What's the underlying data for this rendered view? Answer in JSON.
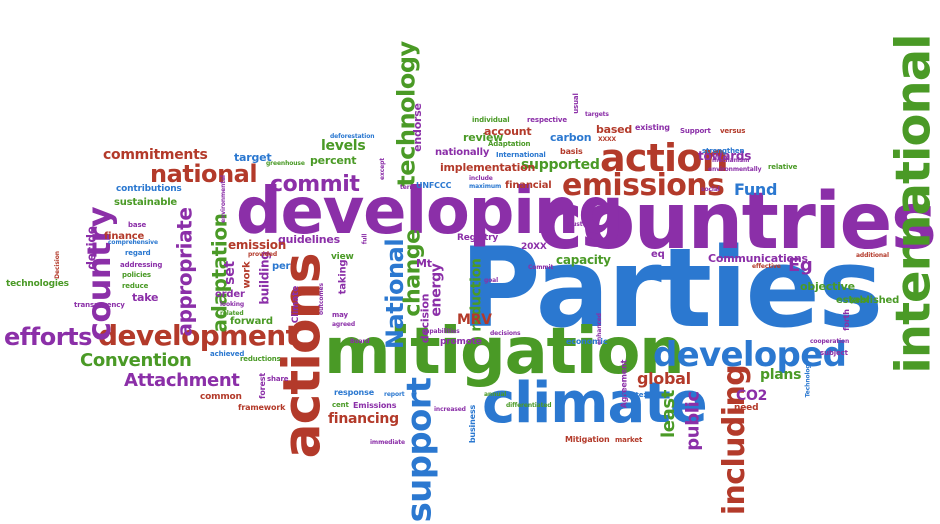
{
  "palette": {
    "green": "#4a9a26",
    "purple": "#8b2fa8",
    "red": "#b33a2a",
    "blue": "#2b78d0"
  },
  "words": [
    {
      "t": "Parties",
      "c": "blue",
      "s": 110
    },
    {
      "t": "countries",
      "c": "purple",
      "s": 78
    },
    {
      "t": "developing",
      "c": "purple",
      "s": 64
    },
    {
      "t": "mitigation",
      "c": "green",
      "s": 64
    },
    {
      "t": "climate",
      "c": "blue",
      "s": 56
    },
    {
      "t": "international",
      "c": "green",
      "s": 48,
      "r": 1
    },
    {
      "t": "actions",
      "c": "red",
      "s": 52,
      "r": 1
    },
    {
      "t": "action",
      "c": "red",
      "s": 38
    },
    {
      "t": "developed",
      "c": "blue",
      "s": 34
    },
    {
      "t": "emissions",
      "c": "red",
      "s": 30
    },
    {
      "t": "development",
      "c": "red",
      "s": 28
    },
    {
      "t": "country",
      "c": "purple",
      "s": 32,
      "r": 1
    },
    {
      "t": "support",
      "c": "blue",
      "s": 34,
      "r": 1
    },
    {
      "t": "including",
      "c": "red",
      "s": 30,
      "r": 1
    },
    {
      "t": "technology",
      "c": "green",
      "s": 24,
      "r": 1
    },
    {
      "t": "National",
      "c": "blue",
      "s": 24,
      "r": 1
    },
    {
      "t": "commit",
      "c": "purple",
      "s": 22
    },
    {
      "t": "national",
      "c": "red",
      "s": 24
    },
    {
      "t": "efforts",
      "c": "purple",
      "s": 24
    },
    {
      "t": "Attachment",
      "c": "purple",
      "s": 18
    },
    {
      "t": "Convention",
      "c": "green",
      "s": 18
    },
    {
      "t": "appropriate",
      "c": "purple",
      "s": 20,
      "r": 1
    },
    {
      "t": "adaptation",
      "c": "green",
      "s": 20,
      "r": 1
    },
    {
      "t": "change",
      "c": "green",
      "s": 22,
      "r": 1
    },
    {
      "t": "commitments",
      "c": "red",
      "s": 14
    },
    {
      "t": "Fund",
      "c": "blue",
      "s": 16
    },
    {
      "t": "Eg",
      "c": "purple",
      "s": 18
    },
    {
      "t": "global",
      "c": "red",
      "s": 16
    },
    {
      "t": "least",
      "c": "green",
      "s": 18,
      "r": 1
    },
    {
      "t": "public",
      "c": "purple",
      "s": 18,
      "r": 1
    },
    {
      "t": "CO2",
      "c": "purple",
      "s": 14
    },
    {
      "t": "plans",
      "c": "green",
      "s": 14
    },
    {
      "t": "financing",
      "c": "red",
      "s": 14
    },
    {
      "t": "supported",
      "c": "green",
      "s": 14
    },
    {
      "t": "implementation",
      "c": "red",
      "s": 11
    },
    {
      "t": "levels",
      "c": "green",
      "s": 14
    },
    {
      "t": "percent",
      "c": "green",
      "s": 11
    },
    {
      "t": "target",
      "c": "blue",
      "s": 11
    },
    {
      "t": "guidelines",
      "c": "purple",
      "s": 11
    },
    {
      "t": "emission",
      "c": "red",
      "s": 12
    },
    {
      "t": "set",
      "c": "purple",
      "s": 14,
      "r": 1
    },
    {
      "t": "reduction",
      "c": "green",
      "s": 14,
      "r": 1
    },
    {
      "t": "energy",
      "c": "purple",
      "s": 14,
      "r": 1
    },
    {
      "t": "decision",
      "c": "purple",
      "s": 11,
      "r": 1
    },
    {
      "t": "MRV",
      "c": "red",
      "s": 14
    },
    {
      "t": "capacity",
      "c": "green",
      "s": 12
    },
    {
      "t": "Communications",
      "c": "purple",
      "s": 11
    },
    {
      "t": "objective",
      "c": "green",
      "s": 11
    },
    {
      "t": "established",
      "c": "green",
      "s": 10
    },
    {
      "t": "towards",
      "c": "purple",
      "s": 12
    },
    {
      "t": "based",
      "c": "red",
      "s": 11
    },
    {
      "t": "carbon",
      "c": "blue",
      "s": 11
    },
    {
      "t": "review",
      "c": "green",
      "s": 11
    },
    {
      "t": "account",
      "c": "red",
      "s": 11
    },
    {
      "t": "nationally",
      "c": "purple",
      "s": 10
    },
    {
      "t": "endorse",
      "c": "purple",
      "s": 11,
      "r": 1
    },
    {
      "t": "finance",
      "c": "red",
      "s": 10
    },
    {
      "t": "sustainable",
      "c": "green",
      "s": 10
    },
    {
      "t": "contributions",
      "c": "blue",
      "s": 9
    },
    {
      "t": "decide",
      "c": "purple",
      "s": 12,
      "r": 1
    },
    {
      "t": "take",
      "c": "purple",
      "s": 11
    },
    {
      "t": "order",
      "c": "purple",
      "s": 10
    },
    {
      "t": "forward",
      "c": "green",
      "s": 10
    },
    {
      "t": "building",
      "c": "purple",
      "s": 12,
      "r": 1
    },
    {
      "t": "per",
      "c": "blue",
      "s": 10
    },
    {
      "t": "view",
      "c": "green",
      "s": 9
    },
    {
      "t": "Mt",
      "c": "purple",
      "s": 11
    },
    {
      "t": "taking",
      "c": "purple",
      "s": 10,
      "r": 1
    },
    {
      "t": "Registry",
      "c": "purple",
      "s": 9
    },
    {
      "t": "20XX",
      "c": "purple",
      "s": 9
    },
    {
      "t": "eq",
      "c": "purple",
      "s": 10
    },
    {
      "t": "Climate",
      "c": "purple",
      "s": 9,
      "r": 1
    },
    {
      "t": "promote",
      "c": "purple",
      "s": 9
    },
    {
      "t": "economic",
      "c": "blue",
      "s": 8
    },
    {
      "t": "common",
      "c": "red",
      "s": 9
    },
    {
      "t": "framework",
      "c": "red",
      "s": 8
    },
    {
      "t": "technologies",
      "c": "green",
      "s": 9
    },
    {
      "t": "Emissions",
      "c": "purple",
      "s": 8
    },
    {
      "t": "response",
      "c": "blue",
      "s": 8
    },
    {
      "t": "Mitigation",
      "c": "red",
      "s": 8
    },
    {
      "t": "market",
      "c": "red",
      "s": 7
    },
    {
      "t": "reductions",
      "c": "green",
      "s": 7
    },
    {
      "t": "share",
      "c": "purple",
      "s": 7
    },
    {
      "t": "achieved",
      "c": "blue",
      "s": 7
    },
    {
      "t": "transparency",
      "c": "purple",
      "s": 7
    },
    {
      "t": "reduce",
      "c": "green",
      "s": 7
    },
    {
      "t": "policies",
      "c": "green",
      "s": 7
    },
    {
      "t": "regard",
      "c": "blue",
      "s": 7
    },
    {
      "t": "addressing",
      "c": "purple",
      "s": 7
    },
    {
      "t": "comprehensive",
      "c": "blue",
      "s": 6
    },
    {
      "t": "base",
      "c": "purple",
      "s": 7
    },
    {
      "t": "Decision",
      "c": "red",
      "s": 6,
      "r": 1
    },
    {
      "t": "looking",
      "c": "purple",
      "s": 6
    },
    {
      "t": "related",
      "c": "green",
      "s": 6
    },
    {
      "t": "provided",
      "c": "red",
      "s": 6
    },
    {
      "t": "work",
      "c": "red",
      "s": 10,
      "r": 1
    },
    {
      "t": "forest",
      "c": "purple",
      "s": 8,
      "r": 1
    },
    {
      "t": "cent",
      "c": "green",
      "s": 7
    },
    {
      "t": "report",
      "c": "blue",
      "s": 6
    },
    {
      "t": "annual",
      "c": "green",
      "s": 6
    },
    {
      "t": "increased",
      "c": "purple",
      "s": 6
    },
    {
      "t": "business",
      "c": "blue",
      "s": 8,
      "r": 1
    },
    {
      "t": "immediate",
      "c": "purple",
      "s": 6
    },
    {
      "t": "differentiated",
      "c": "green",
      "s": 6
    },
    {
      "t": "Agreement",
      "c": "purple",
      "s": 8,
      "r": 1
    },
    {
      "t": "context",
      "c": "blue",
      "s": 7
    },
    {
      "t": "need",
      "c": "red",
      "s": 9
    },
    {
      "t": "Technology",
      "c": "blue",
      "s": 6,
      "r": 1
    },
    {
      "t": "cooperation",
      "c": "purple",
      "s": 6
    },
    {
      "t": "subject",
      "c": "purple",
      "s": 7
    },
    {
      "t": "forth",
      "c": "purple",
      "s": 8,
      "r": 1
    },
    {
      "t": "year",
      "c": "green",
      "s": 8
    },
    {
      "t": "additional",
      "c": "red",
      "s": 6
    },
    {
      "t": "effective",
      "c": "red",
      "s": 6
    },
    {
      "t": "relative",
      "c": "green",
      "s": 7
    },
    {
      "t": "environmentally",
      "c": "purple",
      "s": 6
    },
    {
      "t": "social",
      "c": "purple",
      "s": 6
    },
    {
      "t": "strengthen",
      "c": "blue",
      "s": 7
    },
    {
      "t": "mechanism",
      "c": "purple",
      "s": 6
    },
    {
      "t": "Support",
      "c": "purple",
      "s": 7
    },
    {
      "t": "versus",
      "c": "red",
      "s": 7
    },
    {
      "t": "targets",
      "c": "purple",
      "s": 6
    },
    {
      "t": "existing",
      "c": "purple",
      "s": 8
    },
    {
      "t": "XXXX",
      "c": "red",
      "s": 6
    },
    {
      "t": "usual",
      "c": "purple",
      "s": 7,
      "r": 1
    },
    {
      "t": "respective",
      "c": "purple",
      "s": 7
    },
    {
      "t": "individual",
      "c": "green",
      "s": 7
    },
    {
      "t": "basis",
      "c": "red",
      "s": 8
    },
    {
      "t": "Adaptation",
      "c": "green",
      "s": 7
    },
    {
      "t": "International",
      "c": "blue",
      "s": 7
    },
    {
      "t": "financial",
      "c": "red",
      "s": 10
    },
    {
      "t": "include",
      "c": "purple",
      "s": 6
    },
    {
      "t": "maximum",
      "c": "blue",
      "s": 6
    },
    {
      "t": "UNFCCC",
      "c": "blue",
      "s": 8
    },
    {
      "t": "term",
      "c": "purple",
      "s": 6
    },
    {
      "t": "except",
      "c": "purple",
      "s": 6,
      "r": 1
    },
    {
      "t": "deforestation",
      "c": "blue",
      "s": 6
    },
    {
      "t": "greenhouse",
      "c": "green",
      "s": 6
    },
    {
      "t": "environmental",
      "c": "purple",
      "s": 6,
      "r": 1
    },
    {
      "t": "full",
      "c": "purple",
      "s": 6,
      "r": 1
    },
    {
      "t": "outcomes",
      "c": "purple",
      "s": 6,
      "r": 1
    },
    {
      "t": "may",
      "c": "purple",
      "s": 7
    },
    {
      "t": "agreed",
      "c": "purple",
      "s": 6
    },
    {
      "t": "Board",
      "c": "purple",
      "s": 6
    },
    {
      "t": "goal",
      "c": "purple",
      "s": 6
    },
    {
      "t": "Commit",
      "c": "purple",
      "s": 6
    },
    {
      "t": "must",
      "c": "purple",
      "s": 6
    },
    {
      "t": "capabilities",
      "c": "purple",
      "s": 6
    },
    {
      "t": "decisions",
      "c": "purple",
      "s": 6
    },
    {
      "t": "enhanced",
      "c": "purple",
      "s": 6,
      "r": 1
    }
  ]
}
